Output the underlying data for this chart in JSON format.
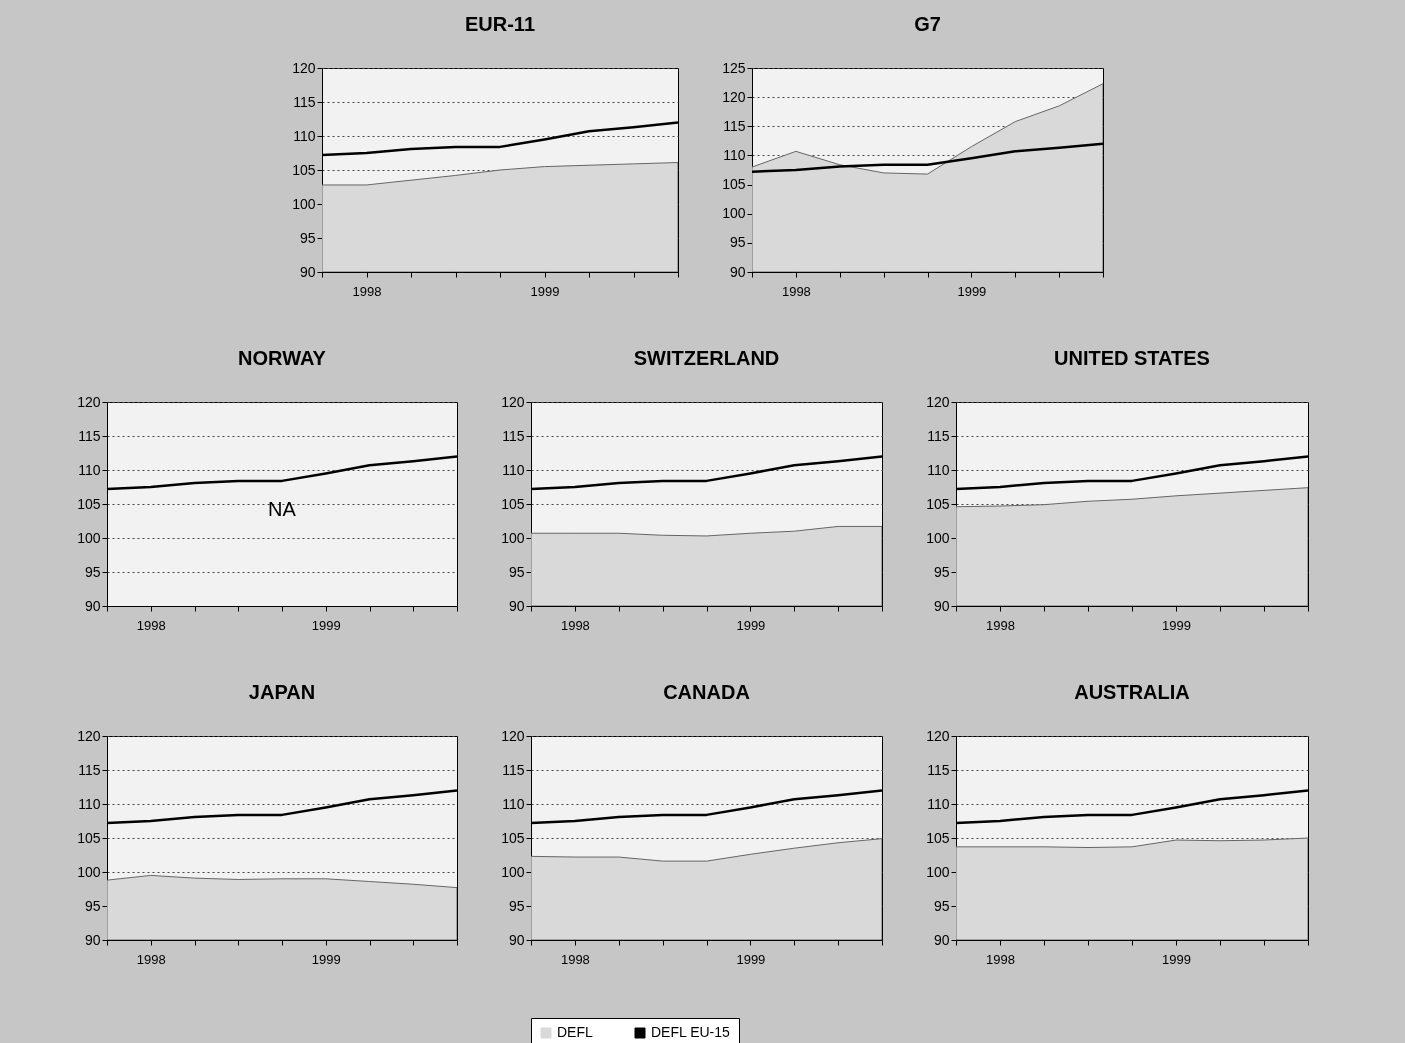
{
  "chart_data": [
    {
      "type": "line",
      "title": "EUR-11",
      "categories": [
        null,
        "1998",
        null,
        null,
        null,
        "1999",
        null,
        null,
        null
      ],
      "ylim": [
        90,
        120
      ],
      "yticks": [
        90,
        95,
        100,
        105,
        110,
        115,
        120
      ],
      "grid": "y",
      "series": [
        {
          "type": "area",
          "color": "#d9d9d9",
          "values": [
            102.8,
            102.8,
            103.5,
            104.2,
            105.0,
            105.5,
            105.7,
            105.9,
            106.1
          ]
        },
        {
          "type": "line",
          "color": "#000000",
          "values": [
            107.2,
            107.5,
            108.1,
            108.4,
            108.4,
            109.5,
            110.7,
            111.3,
            112.0
          ]
        }
      ]
    },
    {
      "type": "line",
      "title": "G7",
      "categories": [
        null,
        "1998",
        null,
        null,
        null,
        "1999",
        null,
        null,
        null
      ],
      "ylim": [
        90,
        125
      ],
      "yticks": [
        90,
        95,
        100,
        105,
        110,
        115,
        120,
        125
      ],
      "grid": "y",
      "series": [
        {
          "type": "area",
          "color": "#d9d9d9",
          "values": [
            108.0,
            110.7,
            108.4,
            107.0,
            106.8,
            111.5,
            115.8,
            118.5,
            122.3
          ]
        },
        {
          "type": "line",
          "color": "#000000",
          "values": [
            107.2,
            107.5,
            108.1,
            108.4,
            108.4,
            109.5,
            110.7,
            111.3,
            112.0
          ]
        }
      ]
    },
    {
      "type": "line",
      "title": "NORWAY",
      "categories": [
        null,
        "1998",
        null,
        null,
        null,
        "1999",
        null,
        null,
        null
      ],
      "ylim": [
        90,
        120
      ],
      "yticks": [
        90,
        95,
        100,
        105,
        110,
        115,
        120
      ],
      "grid": "y",
      "annotations": [
        "NA"
      ],
      "series": [
        {
          "type": "line",
          "color": "#000000",
          "values": [
            107.2,
            107.5,
            108.1,
            108.4,
            108.4,
            109.5,
            110.7,
            111.3,
            112.0
          ]
        }
      ]
    },
    {
      "type": "line",
      "title": "SWITZERLAND",
      "categories": [
        null,
        "1998",
        null,
        null,
        null,
        "1999",
        null,
        null,
        null
      ],
      "ylim": [
        90,
        120
      ],
      "yticks": [
        90,
        95,
        100,
        105,
        110,
        115,
        120
      ],
      "grid": "y",
      "series": [
        {
          "type": "area",
          "color": "#d9d9d9",
          "values": [
            100.7,
            100.7,
            100.7,
            100.4,
            100.3,
            100.7,
            101.0,
            101.7,
            101.7
          ]
        },
        {
          "type": "line",
          "color": "#000000",
          "values": [
            107.2,
            107.5,
            108.1,
            108.4,
            108.4,
            109.5,
            110.7,
            111.3,
            112.0
          ]
        }
      ]
    },
    {
      "type": "line",
      "title": "UNITED STATES",
      "categories": [
        null,
        "1998",
        null,
        null,
        null,
        "1999",
        null,
        null,
        null
      ],
      "ylim": [
        90,
        120
      ],
      "yticks": [
        90,
        95,
        100,
        105,
        110,
        115,
        120
      ],
      "grid": "y",
      "series": [
        {
          "type": "area",
          "color": "#d9d9d9",
          "values": [
            104.6,
            104.7,
            104.9,
            105.4,
            105.7,
            106.2,
            106.6,
            107.0,
            107.4
          ]
        },
        {
          "type": "line",
          "color": "#000000",
          "values": [
            107.2,
            107.5,
            108.1,
            108.4,
            108.4,
            109.5,
            110.7,
            111.3,
            112.0
          ]
        }
      ]
    },
    {
      "type": "line",
      "title": "JAPAN",
      "categories": [
        null,
        "1998",
        null,
        null,
        null,
        "1999",
        null,
        null,
        null
      ],
      "ylim": [
        90,
        120
      ],
      "yticks": [
        90,
        95,
        100,
        105,
        110,
        115,
        120
      ],
      "grid": "y",
      "series": [
        {
          "type": "area",
          "color": "#d9d9d9",
          "values": [
            98.8,
            99.5,
            99.1,
            98.9,
            99.0,
            99.0,
            98.6,
            98.2,
            97.7
          ]
        },
        {
          "type": "line",
          "color": "#000000",
          "values": [
            107.2,
            107.5,
            108.1,
            108.4,
            108.4,
            109.5,
            110.7,
            111.3,
            112.0
          ]
        }
      ]
    },
    {
      "type": "line",
      "title": "CANADA",
      "categories": [
        null,
        "1998",
        null,
        null,
        null,
        "1999",
        null,
        null,
        null
      ],
      "ylim": [
        90,
        120
      ],
      "yticks": [
        90,
        95,
        100,
        105,
        110,
        115,
        120
      ],
      "grid": "y",
      "legend": "bottom",
      "series": [
        {
          "type": "area",
          "name": "DEFL",
          "color": "#d9d9d9",
          "values": [
            102.3,
            102.2,
            102.2,
            101.6,
            101.6,
            102.6,
            103.5,
            104.3,
            104.9
          ]
        },
        {
          "type": "line",
          "name": "DEFL EU-15",
          "color": "#000000",
          "values": [
            107.2,
            107.5,
            108.1,
            108.4,
            108.4,
            109.5,
            110.7,
            111.3,
            112.0
          ]
        }
      ]
    },
    {
      "type": "line",
      "title": "AUSTRALIA",
      "categories": [
        null,
        "1998",
        null,
        null,
        null,
        "1999",
        null,
        null,
        null
      ],
      "ylim": [
        90,
        120
      ],
      "yticks": [
        90,
        95,
        100,
        105,
        110,
        115,
        120
      ],
      "grid": "y",
      "series": [
        {
          "type": "area",
          "color": "#d9d9d9",
          "values": [
            103.7,
            103.7,
            103.7,
            103.6,
            103.7,
            104.7,
            104.6,
            104.7,
            105.0
          ]
        },
        {
          "type": "line",
          "color": "#000000",
          "values": [
            107.2,
            107.5,
            108.1,
            108.4,
            108.4,
            109.5,
            110.7,
            111.3,
            112.0
          ]
        }
      ]
    }
  ]
}
